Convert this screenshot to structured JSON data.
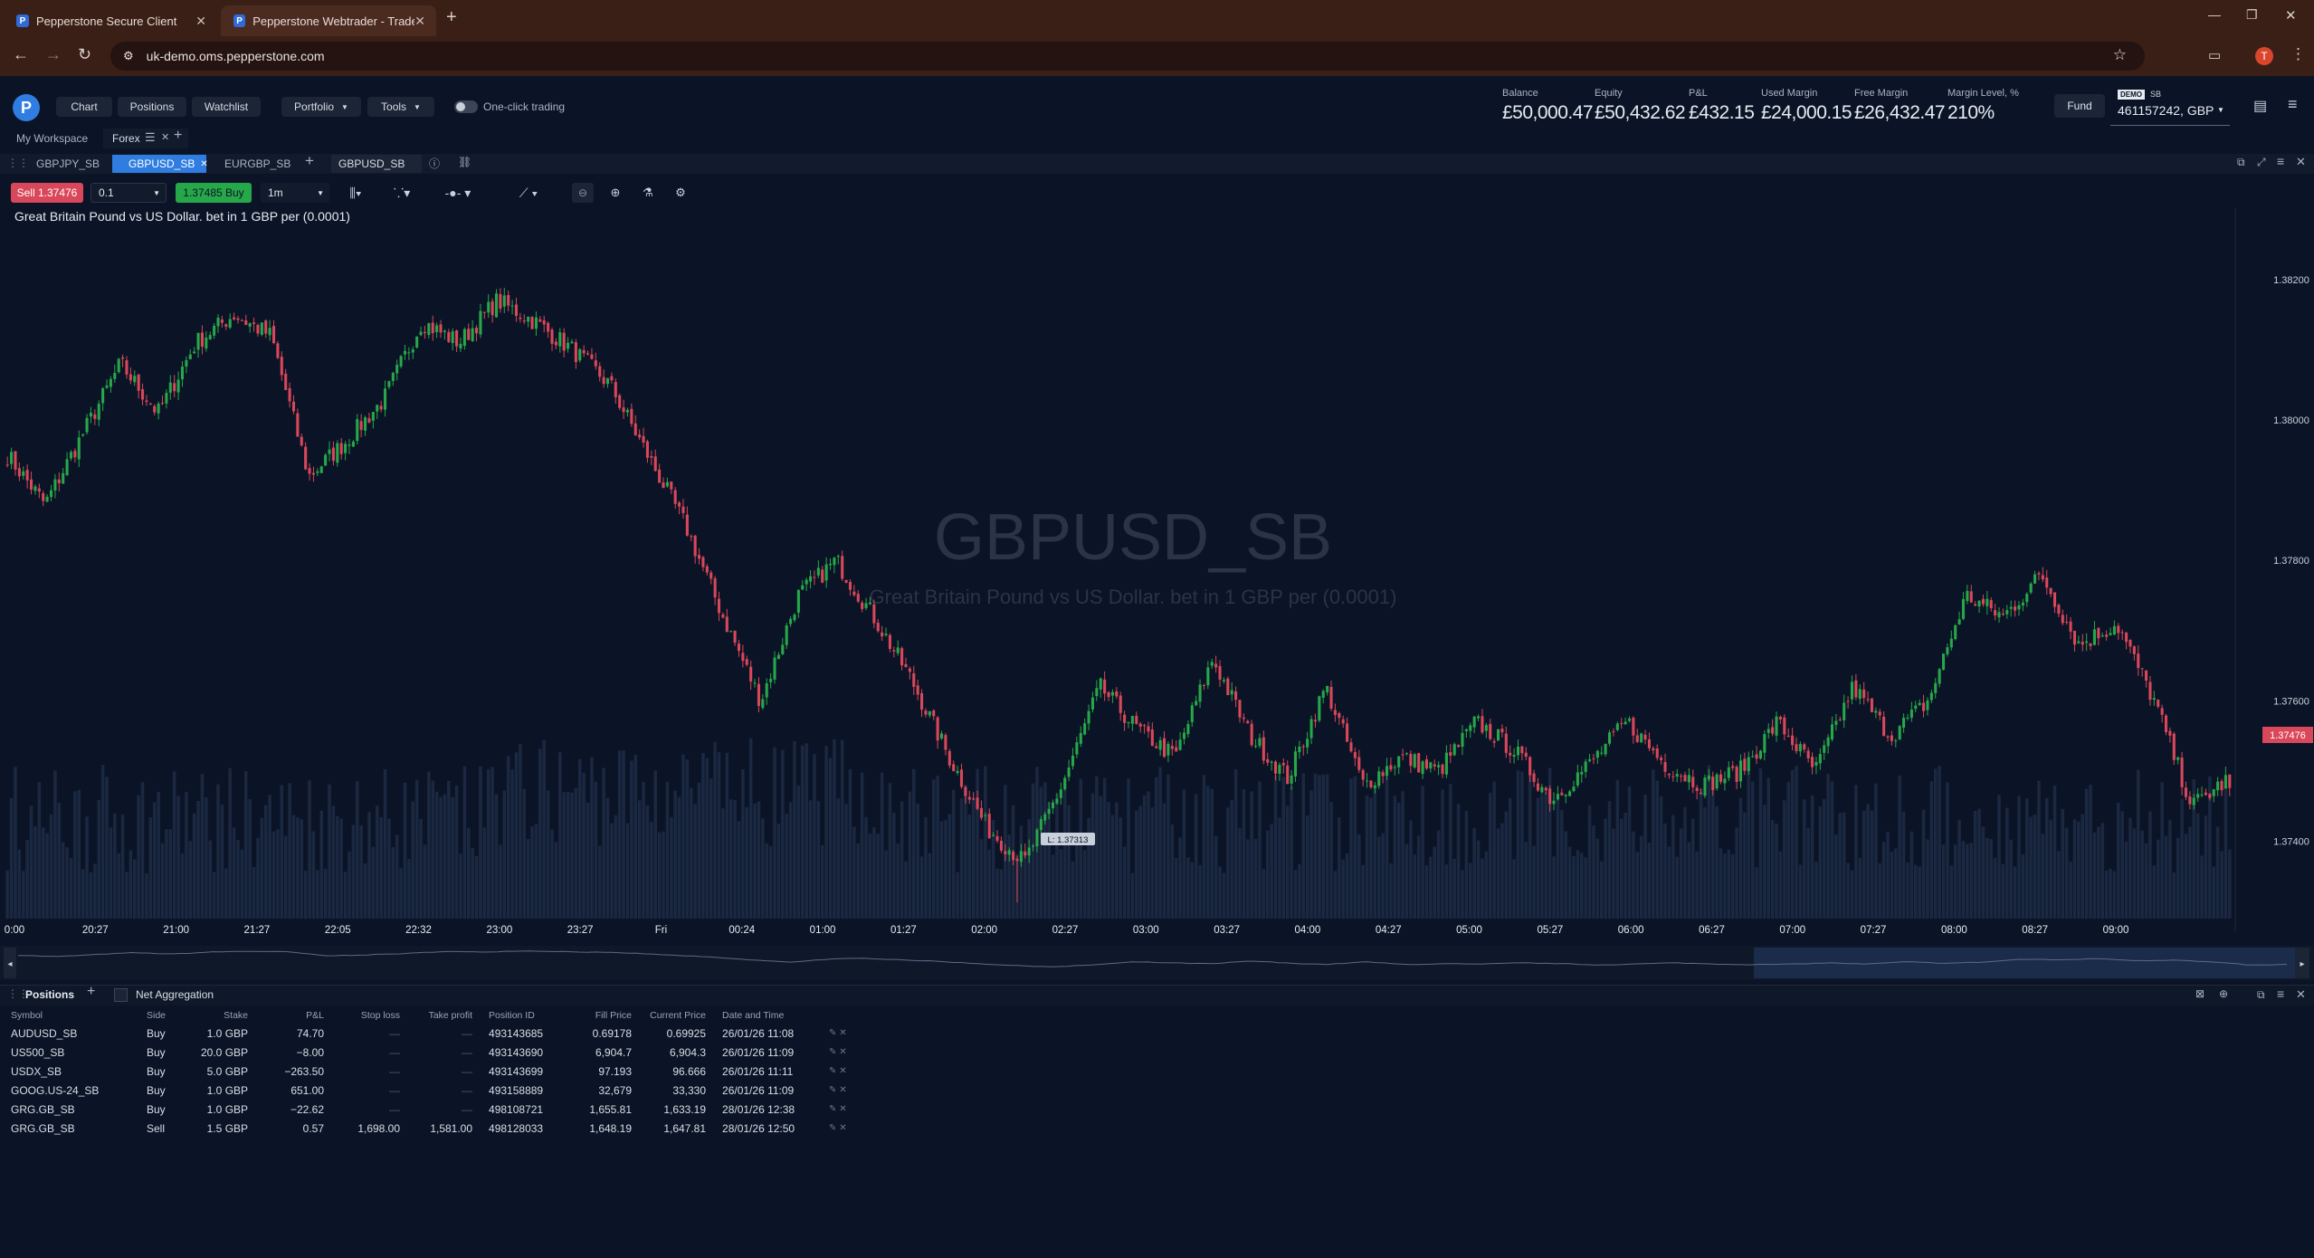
{
  "browser": {
    "tabs": [
      {
        "title": "Pepperstone Secure Client",
        "active": false
      },
      {
        "title": "Pepperstone Webtrader - Trade",
        "active": true
      }
    ],
    "url": "uk-demo.oms.pepperstone.com",
    "profile_initial": "T"
  },
  "nav": {
    "items": [
      "Chart",
      "Positions",
      "Watchlist"
    ],
    "portfolio": "Portfolio",
    "tools": "Tools",
    "one_click": "One-click trading"
  },
  "account": {
    "stats": [
      {
        "label": "Balance",
        "value": "£50,000.47"
      },
      {
        "label": "Equity",
        "value": "£50,432.62"
      },
      {
        "label": "P&L",
        "value": "£432.15"
      },
      {
        "label": "Used Margin",
        "value": "£24,000.15"
      },
      {
        "label": "Free Margin",
        "value": "£26,432.47"
      },
      {
        "label": "Margin Level, %",
        "value": "210%"
      }
    ],
    "fund": "Fund",
    "demo_badge": "DEMO",
    "demo_type": "SB",
    "account_id": "461157242, GBP"
  },
  "workspace": {
    "my": "My Workspace",
    "active": "Forex"
  },
  "chart_tabs": {
    "tabs": [
      "GBPJPY_SB",
      "GBPUSD_SB",
      "EURGBP_SB"
    ],
    "active": "GBPUSD_SB",
    "symbol_box": "GBPUSD_SB"
  },
  "toolbar": {
    "sell": "Sell 1.37476",
    "qty": "0.1",
    "buy": "1.37485 Buy",
    "interval": "1m"
  },
  "chart": {
    "caption": "Great Britain Pound vs US Dollar. bet in 1 GBP per (0.0001)",
    "watermark_symbol": "GBPUSD_SB",
    "watermark_desc": "Great Britain Pound vs US Dollar. bet in 1 GBP per (0.0001)",
    "price_labels": [
      "1.38200",
      "1.38000",
      "1.37800",
      "1.37600",
      "1.37400"
    ],
    "current_price": "1.37476",
    "low_marker": "L: 1.37313",
    "time_labels": [
      "0:00",
      "20:27",
      "21:00",
      "21:27",
      "22:05",
      "22:32",
      "23:00",
      "23:27",
      "Fri",
      "00:24",
      "01:00",
      "01:27",
      "02:00",
      "02:27",
      "03:00",
      "03:27",
      "04:00",
      "04:27",
      "05:00",
      "05:27",
      "06:00",
      "06:27",
      "07:00",
      "07:27",
      "08:00",
      "08:27",
      "09:00"
    ]
  },
  "chart_data": {
    "type": "candlestick",
    "symbol": "GBPUSD_SB",
    "x_ticks": [
      "0:00",
      "20:27",
      "21:00",
      "21:27",
      "22:05",
      "22:32",
      "23:00",
      "23:27",
      "Fri",
      "00:24",
      "01:00",
      "01:27",
      "02:00",
      "02:27",
      "03:00",
      "03:27",
      "04:00",
      "04:27",
      "05:00",
      "05:27",
      "06:00",
      "06:27",
      "07:00",
      "07:27",
      "08:00",
      "08:27",
      "09:00"
    ],
    "y_ticks": [
      1.382,
      1.38,
      1.378,
      1.376,
      1.374
    ],
    "ylim": [
      1.3729,
      1.3829
    ],
    "path": [
      1.3795,
      1.3788,
      1.3798,
      1.3808,
      1.3801,
      1.3811,
      1.3815,
      1.3812,
      1.3792,
      1.3797,
      1.3803,
      1.3814,
      1.3811,
      1.3817,
      1.3814,
      1.381,
      1.3805,
      1.3795,
      1.3785,
      1.3772,
      1.376,
      1.3775,
      1.378,
      1.3772,
      1.3763,
      1.3752,
      1.3742,
      1.3737,
      1.3748,
      1.3762,
      1.3756,
      1.3752,
      1.3766,
      1.3755,
      1.3749,
      1.3762,
      1.3748,
      1.3752,
      1.375,
      1.3757,
      1.3753,
      1.3746,
      1.3751,
      1.3757,
      1.3751,
      1.3748,
      1.375,
      1.3757,
      1.375,
      1.3762,
      1.3755,
      1.376,
      1.3775,
      1.3772,
      1.3778,
      1.3768,
      1.3771,
      1.376,
      1.3745,
      1.3749
    ],
    "current": 1.37476,
    "low": 1.37313,
    "volume": "bars"
  },
  "positions": {
    "title": "Positions",
    "net_aggregation": "Net Aggregation",
    "columns": [
      "Symbol",
      "Side",
      "Stake",
      "P&L",
      "Stop loss",
      "Take profit",
      "Position ID",
      "Fill Price",
      "Current Price",
      "Date and Time"
    ],
    "rows": [
      {
        "symbol": "AUDUSD_SB",
        "side": "Buy",
        "stake": "1.0 GBP",
        "pnl": "74.70",
        "sl": "—",
        "tp": "—",
        "id": "493143685",
        "fill": "0.69178",
        "current": "0.69925",
        "date": "26/01/26 11:08"
      },
      {
        "symbol": "US500_SB",
        "side": "Buy",
        "stake": "20.0 GBP",
        "pnl": "−8.00",
        "sl": "—",
        "tp": "—",
        "id": "493143690",
        "fill": "6,904.7",
        "current": "6,904.3",
        "date": "26/01/26 11:09"
      },
      {
        "symbol": "USDX_SB",
        "side": "Buy",
        "stake": "5.0 GBP",
        "pnl": "−263.50",
        "sl": "—",
        "tp": "—",
        "id": "493143699",
        "fill": "97.193",
        "current": "96.666",
        "date": "26/01/26 11:11"
      },
      {
        "symbol": "GOOG.US-24_SB",
        "side": "Buy",
        "stake": "1.0 GBP",
        "pnl": "651.00",
        "sl": "—",
        "tp": "—",
        "id": "493158889",
        "fill": "32,679",
        "current": "33,330",
        "date": "26/01/26 11:09"
      },
      {
        "symbol": "GRG.GB_SB",
        "side": "Buy",
        "stake": "1.0 GBP",
        "pnl": "−22.62",
        "sl": "—",
        "tp": "—",
        "id": "498108721",
        "fill": "1,655.81",
        "current": "1,633.19",
        "date": "28/01/26 12:38"
      },
      {
        "symbol": "GRG.GB_SB",
        "side": "Sell",
        "stake": "1.5 GBP",
        "pnl": "0.57",
        "sl": "1,698.00",
        "tp": "1,581.00",
        "id": "498128033",
        "fill": "1,648.19",
        "current": "1,647.81",
        "date": "28/01/26 12:50"
      }
    ]
  },
  "colors": {
    "up": "#26a84a",
    "down": "#d9475a",
    "bg": "#0b1426",
    "accent": "#2f7de1"
  }
}
